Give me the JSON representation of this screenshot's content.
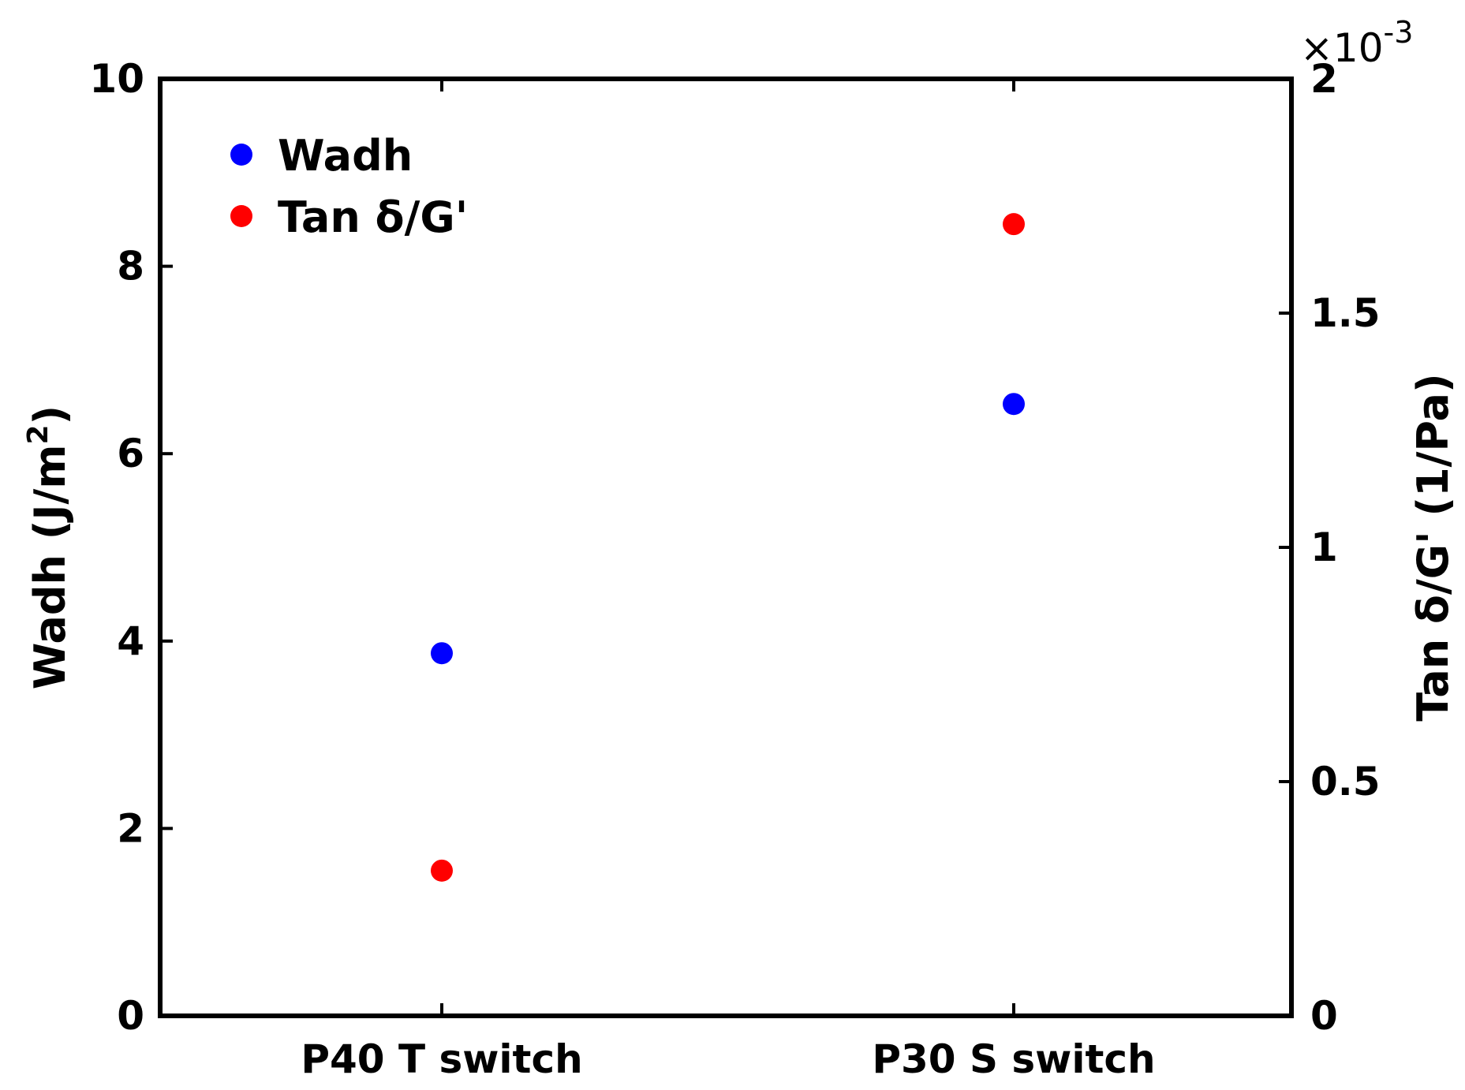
{
  "chart_data": {
    "type": "scatter",
    "categories": [
      "P40 T switch",
      "P30 S switch"
    ],
    "series": [
      {
        "name": "Wadh",
        "axis": "left",
        "color": "#0000ff",
        "values": [
          3.87,
          6.53
        ]
      },
      {
        "name": "Tan δ/G'",
        "axis": "right",
        "color": "#ff0000",
        "values": [
          0.31,
          1.69
        ]
      }
    ],
    "left_axis": {
      "label": "Wadh (J/m",
      "label_superscript": "2",
      "label_suffix": ")",
      "ylim": [
        0,
        10
      ],
      "ticks": [
        "0",
        "2",
        "4",
        "6",
        "8",
        "10"
      ]
    },
    "right_axis": {
      "label": "Tan δ/G' (1/Pa)",
      "ylim": [
        0,
        2
      ],
      "ticks": [
        "0",
        "0.5",
        "1",
        "1.5",
        "2"
      ],
      "exponent_prefix": "×10",
      "exponent": "-3"
    },
    "legend_position": "top-left",
    "grid": false
  }
}
